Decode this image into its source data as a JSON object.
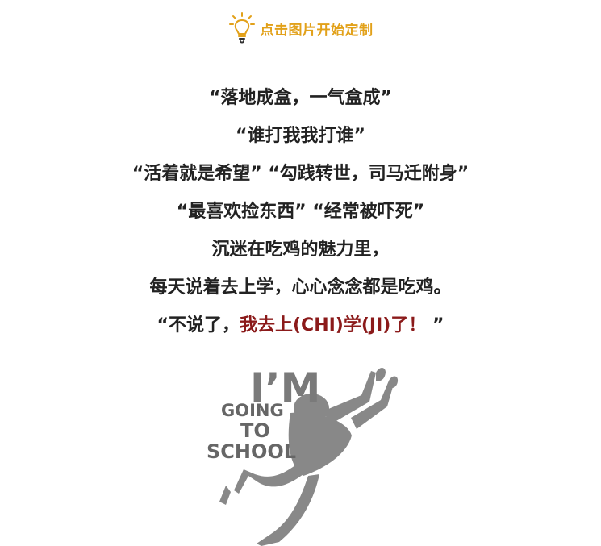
{
  "hint": {
    "icon": "lightbulb-icon",
    "accent_color": "#e2a11a",
    "text": "点击图片开始定制"
  },
  "poem": {
    "line1": "“落地成盒，一气盒成”",
    "line2": "“谁打我我打谁”",
    "line3": "“活着就是希望” “勾践转世，司马迁附身”",
    "line4": "“最喜欢捡东西” “经常被吓死”",
    "line5": "沉迷在吃鸡的魅力里，",
    "line6": "每天说着去上学，心心念念都是吃鸡。",
    "line7_prefix": "“不说了，",
    "line7_highlight": "我去上(CHI)学(JI)了！",
    "line7_suffix": " ”",
    "highlight_color": "#8b1a1a"
  },
  "artwork": {
    "im": "I’M",
    "going": "GOING",
    "to": "TO",
    "school": "SCHOOL",
    "figure_icon": "diving-person-silhouette-icon",
    "color": "#888888"
  }
}
